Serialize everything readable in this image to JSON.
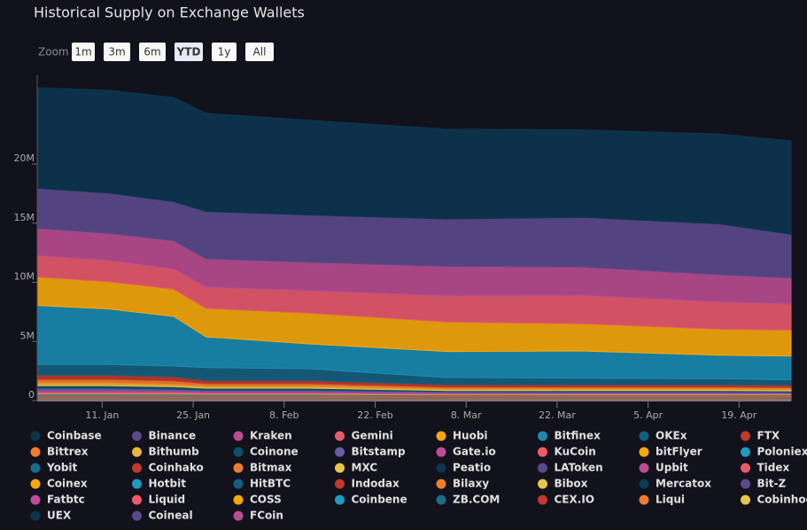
{
  "chart_data": {
    "type": "area",
    "stacked": true,
    "title": "Historical Supply on Exchange Wallets",
    "zoom": {
      "label": "Zoom",
      "buttons": [
        "1m",
        "3m",
        "6m",
        "YTD",
        "1y",
        "All"
      ],
      "selected": 3
    },
    "x": [
      1,
      12,
      22,
      27,
      43,
      64,
      85,
      106,
      117
    ],
    "xlim": [
      1,
      117
    ],
    "xticks": [
      {
        "value": 11,
        "label": "11. Jan"
      },
      {
        "value": 25,
        "label": "25. Jan"
      },
      {
        "value": 39,
        "label": "8. Feb"
      },
      {
        "value": 53,
        "label": "22. Feb"
      },
      {
        "value": 67,
        "label": "8. Mar"
      },
      {
        "value": 81,
        "label": "22. Mar"
      },
      {
        "value": 95,
        "label": "5. Apr"
      },
      {
        "value": 109,
        "label": "19. Apr"
      }
    ],
    "ylim": [
      0,
      27500000
    ],
    "yticks": [
      0,
      {
        "value": 5000000,
        "label": "5M"
      },
      {
        "value": 10000000,
        "label": "10M"
      },
      {
        "value": 15000000,
        "label": "15M"
      },
      {
        "value": 20000000,
        "label": "20M"
      }
    ],
    "series": [
      {
        "name": "Coinbase",
        "color": "#0d3550",
        "values": [
          8500000,
          8700000,
          8800000,
          8300000,
          8000000,
          7600000,
          7400000,
          7600000,
          7900000
        ]
      },
      {
        "name": "Binance",
        "color": "#5b4a8b",
        "values": [
          3400000,
          3400000,
          3300000,
          4000000,
          4000000,
          4000000,
          4200000,
          4300000,
          3700000
        ]
      },
      {
        "name": "Kraken",
        "color": "#b94d8f",
        "values": [
          2300000,
          2300000,
          2400000,
          2400000,
          2400000,
          2500000,
          2400000,
          2300000,
          2200000
        ]
      },
      {
        "name": "Gemini",
        "color": "#e75a6a",
        "values": [
          1800000,
          1800000,
          1700000,
          1800000,
          1900000,
          2200000,
          2400000,
          2300000,
          2200000
        ]
      },
      {
        "name": "Huobi",
        "color": "#f5a70a",
        "values": [
          2400000,
          2300000,
          2300000,
          2400000,
          2600000,
          2500000,
          2300000,
          2200000,
          2200000
        ]
      },
      {
        "name": "Bitfinex",
        "color": "#1a8bb0",
        "values": [
          5000000,
          4700000,
          4200000,
          2600000,
          2100000,
          2200000,
          2300000,
          2000000,
          2000000
        ]
      },
      {
        "name": "OKEx",
        "color": "#155f7e",
        "values": [
          900000,
          900000,
          900000,
          1100000,
          1000000,
          600000,
          550000,
          500000,
          450000
        ]
      },
      {
        "name": "FTX",
        "color": "#c0392b",
        "values": [
          350000,
          350000,
          350000,
          250000,
          250000,
          200000,
          200000,
          200000,
          200000
        ]
      },
      {
        "name": "Bittrex",
        "color": "#f07d2a",
        "values": [
          300000,
          300000,
          300000,
          200000,
          200000,
          150000,
          150000,
          150000,
          150000
        ]
      },
      {
        "name": "Bithumb",
        "color": "#e6b83a",
        "values": [
          250000,
          250000,
          200000,
          200000,
          200000,
          150000,
          150000,
          150000,
          150000
        ]
      },
      {
        "name": "Coinone",
        "color": "#0b4f6c",
        "values": [
          200000,
          200000,
          200000,
          150000,
          150000,
          100000,
          100000,
          100000,
          100000
        ]
      },
      {
        "name": "Bitstamp",
        "color": "#6a5aa8",
        "values": [
          200000,
          200000,
          150000,
          150000,
          150000,
          100000,
          100000,
          100000,
          80000
        ]
      },
      {
        "name": "Gate.io",
        "color": "#c14b9a",
        "values": [
          150000,
          150000,
          120000,
          100000,
          100000,
          80000,
          70000,
          70000,
          60000
        ]
      },
      {
        "name": "KuCoin",
        "color": "#f25a6a",
        "values": [
          60000,
          60000,
          60000,
          50000,
          50000,
          40000,
          40000,
          40000,
          40000
        ]
      },
      {
        "name": "bitFlyer",
        "color": "#f5a80a",
        "values": [
          60000,
          60000,
          60000,
          50000,
          50000,
          40000,
          40000,
          40000,
          40000
        ]
      },
      {
        "name": "Poloniex",
        "color": "#1d9bc2",
        "values": [
          50000,
          50000,
          50000,
          40000,
          40000,
          30000,
          30000,
          30000,
          30000
        ]
      },
      {
        "name": "Yobit",
        "color": "#1c6b8a",
        "values": [
          40000,
          40000,
          40000,
          30000,
          30000,
          30000,
          30000,
          30000,
          30000
        ]
      },
      {
        "name": "Coinhako",
        "color": "#c0392b",
        "values": [
          40000,
          40000,
          40000,
          30000,
          30000,
          30000,
          30000,
          30000,
          30000
        ]
      },
      {
        "name": "Bitmax",
        "color": "#ee7b30",
        "values": [
          40000,
          40000,
          40000,
          30000,
          30000,
          30000,
          30000,
          30000,
          30000
        ]
      },
      {
        "name": "MXC",
        "color": "#e8c547",
        "values": [
          30000,
          30000,
          30000,
          30000,
          30000,
          20000,
          20000,
          20000,
          20000
        ]
      },
      {
        "name": "Peatio",
        "color": "#0d3550",
        "values": [
          30000,
          30000,
          30000,
          30000,
          30000,
          20000,
          20000,
          20000,
          20000
        ]
      },
      {
        "name": "LAToken",
        "color": "#5b4a8b",
        "values": [
          30000,
          30000,
          30000,
          30000,
          30000,
          20000,
          20000,
          20000,
          20000
        ]
      },
      {
        "name": "Upbit",
        "color": "#b94d8f",
        "values": [
          30000,
          30000,
          30000,
          30000,
          30000,
          20000,
          20000,
          20000,
          20000
        ]
      },
      {
        "name": "Tidex",
        "color": "#e75a6a",
        "values": [
          20000,
          20000,
          20000,
          20000,
          20000,
          20000,
          20000,
          20000,
          20000
        ]
      },
      {
        "name": "Coinex",
        "color": "#f5a70a",
        "values": [
          20000,
          20000,
          20000,
          20000,
          20000,
          20000,
          20000,
          20000,
          20000
        ]
      },
      {
        "name": "Hotbit",
        "color": "#1a9bc0",
        "values": [
          20000,
          20000,
          20000,
          20000,
          20000,
          20000,
          20000,
          20000,
          20000
        ]
      },
      {
        "name": "HitBTC",
        "color": "#155f7e",
        "values": [
          20000,
          20000,
          20000,
          20000,
          20000,
          20000,
          20000,
          20000,
          20000
        ]
      },
      {
        "name": "Indodax",
        "color": "#c0392b",
        "values": [
          20000,
          20000,
          20000,
          20000,
          20000,
          20000,
          20000,
          20000,
          20000
        ]
      },
      {
        "name": "Bilaxy",
        "color": "#f07d2a",
        "values": [
          20000,
          20000,
          20000,
          20000,
          20000,
          20000,
          20000,
          20000,
          20000
        ]
      },
      {
        "name": "Bibox",
        "color": "#e6c547",
        "values": [
          20000,
          20000,
          20000,
          20000,
          20000,
          20000,
          20000,
          20000,
          20000
        ]
      },
      {
        "name": "Mercatox",
        "color": "#0b3a52",
        "values": [
          20000,
          20000,
          20000,
          20000,
          20000,
          20000,
          20000,
          20000,
          20000
        ]
      },
      {
        "name": "Bit-Z",
        "color": "#5b4a8b",
        "values": [
          20000,
          20000,
          20000,
          20000,
          20000,
          20000,
          20000,
          20000,
          20000
        ]
      },
      {
        "name": "Fatbtc",
        "color": "#c14b9a",
        "values": [
          10000,
          10000,
          10000,
          10000,
          10000,
          10000,
          10000,
          10000,
          10000
        ]
      },
      {
        "name": "Liquid",
        "color": "#f25a6a",
        "values": [
          10000,
          10000,
          10000,
          10000,
          10000,
          10000,
          10000,
          10000,
          10000
        ]
      },
      {
        "name": "COSS",
        "color": "#f5a80a",
        "values": [
          10000,
          10000,
          10000,
          10000,
          10000,
          10000,
          10000,
          10000,
          10000
        ]
      },
      {
        "name": "Coinbene",
        "color": "#1d9bc2",
        "values": [
          10000,
          10000,
          10000,
          10000,
          10000,
          10000,
          10000,
          10000,
          10000
        ]
      },
      {
        "name": "ZB.COM",
        "color": "#1c6b8a",
        "values": [
          10000,
          10000,
          10000,
          10000,
          10000,
          10000,
          10000,
          10000,
          10000
        ]
      },
      {
        "name": "CEX.IO",
        "color": "#c0392b",
        "values": [
          10000,
          10000,
          10000,
          10000,
          10000,
          10000,
          10000,
          10000,
          10000
        ]
      },
      {
        "name": "Liqui",
        "color": "#ee7b30",
        "values": [
          10000,
          10000,
          10000,
          10000,
          10000,
          10000,
          10000,
          10000,
          10000
        ]
      },
      {
        "name": "Cobinhood",
        "color": "#e8c547",
        "values": [
          10000,
          10000,
          10000,
          10000,
          10000,
          10000,
          10000,
          10000,
          10000
        ]
      },
      {
        "name": "UEX",
        "color": "#0d3550",
        "values": [
          10000,
          10000,
          10000,
          10000,
          10000,
          10000,
          10000,
          10000,
          10000
        ]
      },
      {
        "name": "Coineal",
        "color": "#5b4a8b",
        "values": [
          10000,
          10000,
          10000,
          10000,
          10000,
          10000,
          10000,
          10000,
          10000
        ]
      },
      {
        "name": "FCoin",
        "color": "#b94d8f",
        "values": [
          10000,
          10000,
          10000,
          10000,
          10000,
          10000,
          10000,
          10000,
          10000
        ]
      }
    ]
  }
}
